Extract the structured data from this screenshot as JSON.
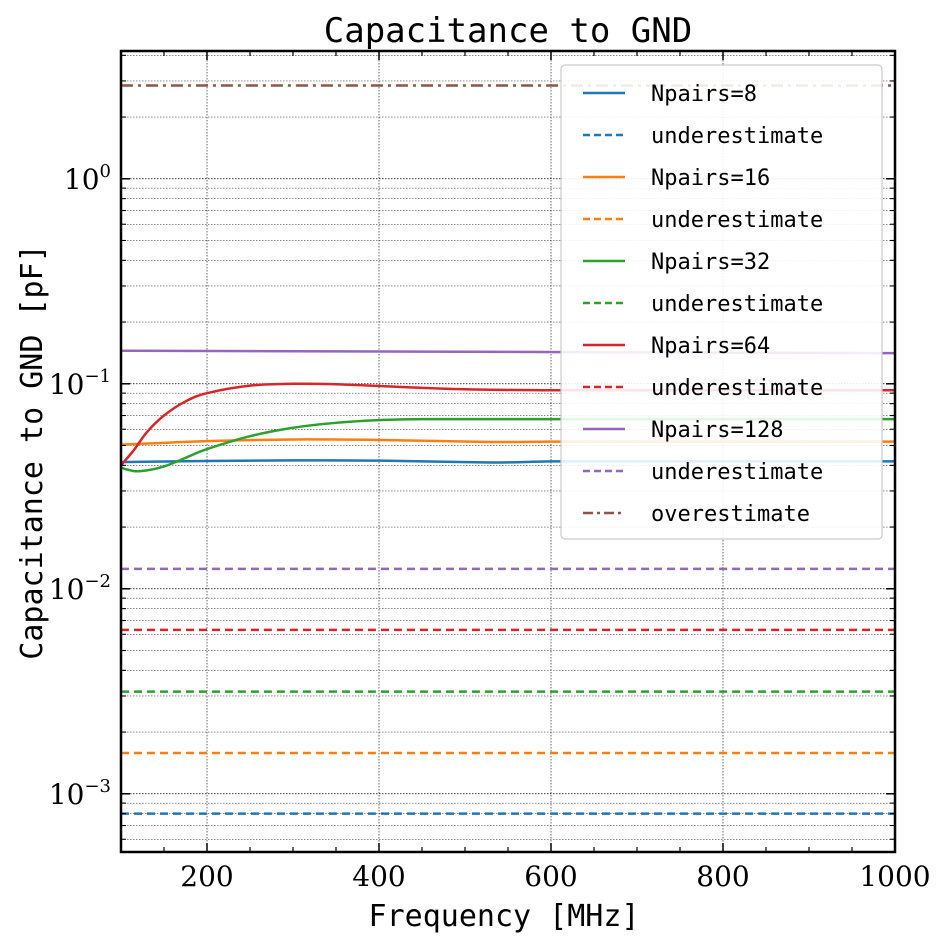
{
  "chart_data": {
    "type": "line",
    "title": "Capacitance to GND",
    "xlabel": "Frequency [MHz]",
    "ylabel": "Capacitance to GND [pF]",
    "xlim": [
      100,
      1000
    ],
    "ylim": [
      0.00052,
      4.2
    ],
    "yscale": "log",
    "grid": true,
    "legend_position": "top-right",
    "x_ticks": [
      200,
      400,
      600,
      800,
      1000
    ],
    "y_ticks": [
      {
        "value": 0.001,
        "base": "10",
        "exp": "−3"
      },
      {
        "value": 0.01,
        "base": "10",
        "exp": "−2"
      },
      {
        "value": 0.1,
        "base": "10",
        "exp": "−1"
      },
      {
        "value": 1,
        "base": "10",
        "exp": "0"
      }
    ],
    "series": [
      {
        "name": "Npairs=8",
        "color": "#1f77b4",
        "style": "solid",
        "x": [
          100,
          200,
          300,
          400,
          530,
          600,
          700,
          800,
          900,
          1000
        ],
        "y": [
          0.0415,
          0.042,
          0.0423,
          0.0422,
          0.0413,
          0.0418,
          0.0418,
          0.0418,
          0.0418,
          0.0418
        ]
      },
      {
        "name": "underestimate",
        "color": "#1f77b4",
        "style": "dashed",
        "x": [
          100,
          1000
        ],
        "y": [
          0.0008,
          0.0008
        ]
      },
      {
        "name": "Npairs=16",
        "color": "#ff7f0e",
        "style": "solid",
        "x": [
          100,
          150,
          200,
          300,
          400,
          530,
          600,
          700,
          800,
          900,
          1000
        ],
        "y": [
          0.0505,
          0.0515,
          0.0525,
          0.0535,
          0.0532,
          0.052,
          0.0522,
          0.0522,
          0.0522,
          0.0522,
          0.0522
        ]
      },
      {
        "name": "underestimate",
        "color": "#ff7f0e",
        "style": "dashed",
        "x": [
          100,
          1000
        ],
        "y": [
          0.00158,
          0.00158
        ]
      },
      {
        "name": "Npairs=32",
        "color": "#2ca02c",
        "style": "solid",
        "x": [
          100,
          115,
          130,
          150,
          175,
          200,
          250,
          300,
          350,
          400,
          450,
          500,
          600,
          700,
          800,
          900,
          1000
        ],
        "y": [
          0.039,
          0.0375,
          0.0378,
          0.0395,
          0.0435,
          0.048,
          0.0555,
          0.061,
          0.0645,
          0.0665,
          0.0672,
          0.0672,
          0.0672,
          0.0672,
          0.0672,
          0.0672,
          0.0672
        ]
      },
      {
        "name": "underestimate",
        "color": "#2ca02c",
        "style": "dashed",
        "x": [
          100,
          1000
        ],
        "y": [
          0.00315,
          0.00315
        ]
      },
      {
        "name": "Npairs=64",
        "color": "#d62728",
        "style": "solid",
        "x": [
          100,
          115,
          130,
          150,
          175,
          200,
          250,
          300,
          350,
          400,
          500,
          600,
          700,
          800,
          900,
          1000
        ],
        "y": [
          0.04,
          0.0475,
          0.058,
          0.07,
          0.082,
          0.09,
          0.098,
          0.1,
          0.0995,
          0.0975,
          0.094,
          0.093,
          0.093,
          0.093,
          0.093,
          0.093
        ]
      },
      {
        "name": "underestimate",
        "color": "#d62728",
        "style": "dashed",
        "x": [
          100,
          1000
        ],
        "y": [
          0.0063,
          0.0063
        ]
      },
      {
        "name": "Npairs=128",
        "color": "#9467bd",
        "style": "solid",
        "x": [
          100,
          1000
        ],
        "y": [
          0.145,
          0.141
        ]
      },
      {
        "name": "underestimate",
        "color": "#9467bd",
        "style": "dashed",
        "x": [
          100,
          1000
        ],
        "y": [
          0.0125,
          0.0125
        ]
      },
      {
        "name": "overestimate",
        "color": "#8c564b",
        "style": "dashdot",
        "x": [
          100,
          1000
        ],
        "y": [
          2.85,
          2.85
        ]
      }
    ]
  }
}
